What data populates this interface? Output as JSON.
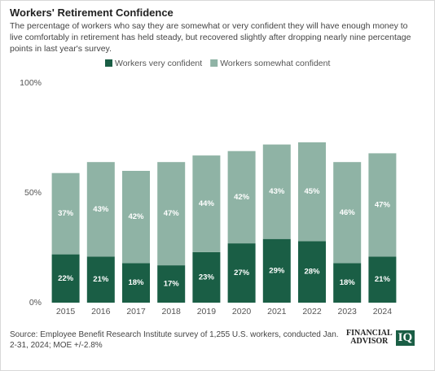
{
  "chart_data": {
    "type": "stacked_bar",
    "title": "Workers' Retirement Confidence",
    "subtitle": "The percentage of workers who say they are somewhat or very confident they will have enough money to live comfortably in retirement has held steady, but recovered slightly after dropping nearly nine percentage points in last year's survey.",
    "source": "Source: Employee Benefit Research Institute survey of 1,255 U.S. workers, conducted Jan. 2-31, 2024; MOE +/-2.8%",
    "categories": [
      "2015",
      "2016",
      "2017",
      "2018",
      "2019",
      "2020",
      "2021",
      "2022",
      "2023",
      "2024"
    ],
    "series": [
      {
        "name": "Workers very confident",
        "color": "#1a5e45",
        "values": [
          22,
          21,
          18,
          17,
          23,
          27,
          29,
          28,
          18,
          21
        ],
        "value_labels": [
          "22%",
          "21%",
          "18%",
          "17%",
          "23%",
          "27%",
          "29%",
          "28%",
          "18%",
          "21%"
        ]
      },
      {
        "name": "Workers somewhat confident",
        "color": "#8fb3a5",
        "values": [
          37,
          43,
          42,
          47,
          44,
          42,
          43,
          45,
          46,
          47
        ],
        "value_labels": [
          "37%",
          "43%",
          "42%",
          "47%",
          "44%",
          "42%",
          "43%",
          "45%",
          "46%",
          "47%"
        ]
      }
    ],
    "ylim": [
      0,
      100
    ],
    "yticks": [
      {
        "value": 0,
        "label": "0%"
      },
      {
        "value": 50,
        "label": "50%"
      },
      {
        "value": 100,
        "label": "100%"
      }
    ],
    "grid": false
  },
  "logo": {
    "line1": "FINANCIAL",
    "line2": "ADVISOR",
    "mark": "IQ"
  }
}
